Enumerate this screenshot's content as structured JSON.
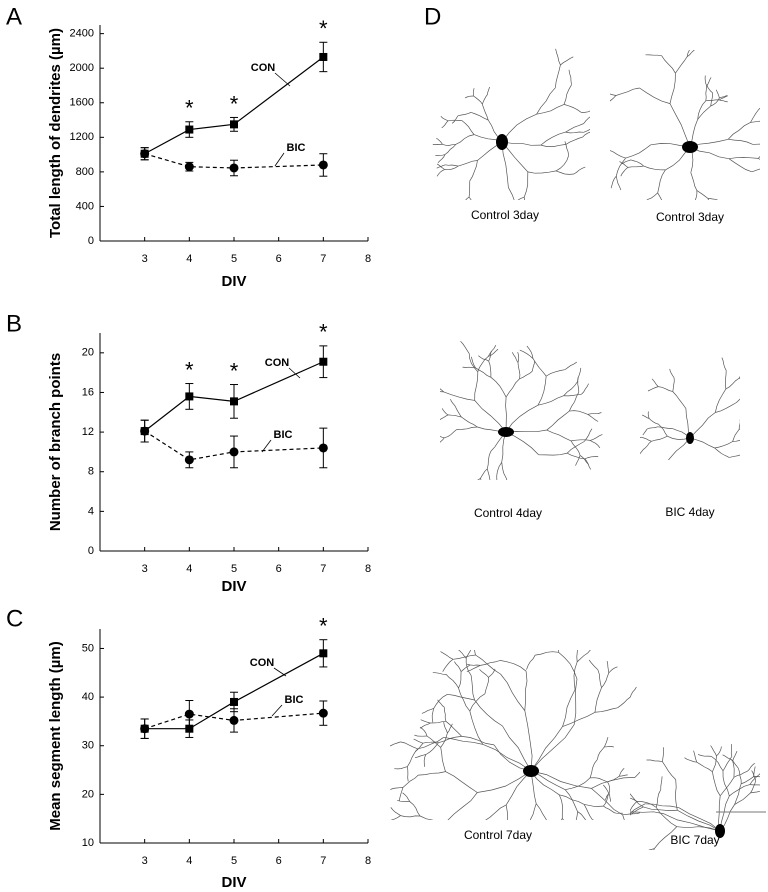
{
  "chart_data": [
    {
      "type": "line",
      "panel": "A",
      "ylabel": "Total length of dendrites (µm)",
      "xlabel": "DIV",
      "x": [
        3,
        4,
        5,
        7
      ],
      "xlim": [
        2,
        8
      ],
      "xticks": [
        3,
        4,
        5,
        6,
        7,
        8
      ],
      "ylim": [
        0,
        2500
      ],
      "yticks": [
        0,
        400,
        800,
        1200,
        1600,
        2000,
        2400
      ],
      "series": [
        {
          "name": "CON",
          "color": "#000000",
          "line_style": "solid",
          "marker": "square",
          "values": [
            1010,
            1290,
            1350,
            2130
          ],
          "errors": [
            70,
            90,
            80,
            170
          ]
        },
        {
          "name": "BIC",
          "color": "#000000",
          "line_style": "dashed",
          "marker": "circle",
          "values": [
            1010,
            860,
            845,
            880
          ],
          "errors": [
            70,
            50,
            90,
            130
          ]
        }
      ],
      "annotations": [
        {
          "x": 4,
          "text": "*"
        },
        {
          "x": 5,
          "text": "*"
        },
        {
          "x": 7,
          "text": "*"
        }
      ]
    },
    {
      "type": "line",
      "panel": "B",
      "ylabel": "Number of branch points",
      "xlabel": "DIV",
      "x": [
        3,
        4,
        5,
        7
      ],
      "xlim": [
        2,
        8
      ],
      "xticks": [
        3,
        4,
        5,
        6,
        7,
        8
      ],
      "ylim": [
        0,
        22
      ],
      "yticks": [
        0,
        4,
        8,
        12,
        16,
        20
      ],
      "series": [
        {
          "name": "CON",
          "color": "#000000",
          "line_style": "solid",
          "marker": "square",
          "values": [
            12.1,
            15.6,
            15.1,
            19.1
          ],
          "errors": [
            1.1,
            1.3,
            1.7,
            1.6
          ]
        },
        {
          "name": "BIC",
          "color": "#000000",
          "line_style": "dashed",
          "marker": "circle",
          "values": [
            12.1,
            9.2,
            10.0,
            10.4
          ],
          "errors": [
            1.1,
            0.8,
            1.6,
            2.0
          ]
        }
      ],
      "annotations": [
        {
          "x": 4,
          "text": "*"
        },
        {
          "x": 5,
          "text": "*"
        },
        {
          "x": 7,
          "text": "*"
        }
      ]
    },
    {
      "type": "line",
      "panel": "C",
      "ylabel": "Mean segment length (µm)",
      "xlabel": "DIV",
      "x": [
        3,
        4,
        5,
        7
      ],
      "xlim": [
        2,
        8
      ],
      "xticks": [
        3,
        4,
        5,
        6,
        7,
        8
      ],
      "ylim": [
        10,
        54
      ],
      "yticks": [
        10,
        20,
        30,
        40,
        50
      ],
      "series": [
        {
          "name": "CON",
          "color": "#000000",
          "line_style": "solid",
          "marker": "square",
          "values": [
            33.5,
            33.5,
            39.0,
            49.0
          ],
          "errors": [
            2.0,
            1.8,
            2.0,
            2.8
          ]
        },
        {
          "name": "BIC",
          "color": "#000000",
          "line_style": "dashed",
          "marker": "circle",
          "values": [
            33.5,
            36.5,
            35.2,
            36.7
          ],
          "errors": [
            2.0,
            2.8,
            2.4,
            2.5
          ]
        }
      ],
      "annotations": [
        {
          "x": 7,
          "text": "*"
        }
      ]
    }
  ],
  "panel_d": {
    "label": "D",
    "captions": [
      "Control 3day",
      "Control 3day",
      "Control 4day",
      "BIC 4day",
      "Control 7day",
      "BIC 7day"
    ]
  }
}
